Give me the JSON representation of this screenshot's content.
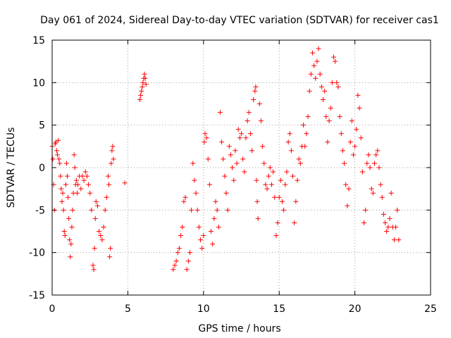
{
  "chart_data": {
    "type": "scatter",
    "title": "Day 061 of 2024, Sidereal Day-to-day VTEC variation (SDTVAR) for receiver cas1",
    "xlabel": "GPS time / hours",
    "ylabel": "SDTVAR / TECUs",
    "xlim": [
      0,
      25
    ],
    "ylim": [
      -15,
      15
    ],
    "xticks": [
      0,
      5,
      10,
      15,
      20,
      25
    ],
    "yticks": [
      -15,
      -10,
      -5,
      0,
      5,
      10,
      15
    ],
    "xtick_labels": [
      "0",
      "5",
      "10",
      "15",
      "20",
      "25"
    ],
    "ytick_labels": [
      "-15",
      "-10",
      "-5",
      "0",
      "5",
      "10",
      "15"
    ],
    "grid": true,
    "marker": "+",
    "color": "#ff0000",
    "series": [
      {
        "name": "SDTVAR",
        "x": [
          0.0,
          0.05,
          0.1,
          0.15,
          0.2,
          0.25,
          0.3,
          0.35,
          0.4,
          0.45,
          0.5,
          0.55,
          0.6,
          0.65,
          0.7,
          0.75,
          0.8,
          0.85,
          0.9,
          0.95,
          1.0,
          1.05,
          1.1,
          1.15,
          1.2,
          1.25,
          1.3,
          1.35,
          1.4,
          1.45,
          1.5,
          1.55,
          1.6,
          1.65,
          1.7,
          1.8,
          1.9,
          2.0,
          2.1,
          2.2,
          2.3,
          2.4,
          2.5,
          2.6,
          2.7,
          2.75,
          2.8,
          2.85,
          2.9,
          3.0,
          3.1,
          3.2,
          3.3,
          3.4,
          3.5,
          3.6,
          3.7,
          3.75,
          3.8,
          3.85,
          3.9,
          3.95,
          4.0,
          4.05,
          4.8,
          5.8,
          5.85,
          5.9,
          5.95,
          6.0,
          6.05,
          6.1,
          6.15,
          6.2,
          8.0,
          8.1,
          8.2,
          8.3,
          8.4,
          8.5,
          8.6,
          8.7,
          8.8,
          8.9,
          9.0,
          9.1,
          9.2,
          9.3,
          9.4,
          9.5,
          9.6,
          9.7,
          9.8,
          9.9,
          10.0,
          10.05,
          10.1,
          10.2,
          10.3,
          10.4,
          10.5,
          10.6,
          10.7,
          10.8,
          10.9,
          11.0,
          11.1,
          11.2,
          11.3,
          11.4,
          11.5,
          11.6,
          11.7,
          11.8,
          11.9,
          12.0,
          12.1,
          12.2,
          12.3,
          12.4,
          12.5,
          12.6,
          12.7,
          12.8,
          12.9,
          13.0,
          13.1,
          13.2,
          13.3,
          13.4,
          13.45,
          13.5,
          13.55,
          13.6,
          13.7,
          13.8,
          13.9,
          14.0,
          14.1,
          14.2,
          14.3,
          14.4,
          14.5,
          14.6,
          14.7,
          14.8,
          14.9,
          15.0,
          15.1,
          15.2,
          15.3,
          15.4,
          15.5,
          15.6,
          15.7,
          15.8,
          15.9,
          16.0,
          16.1,
          16.2,
          16.3,
          16.4,
          16.5,
          16.6,
          16.7,
          16.8,
          16.9,
          17.0,
          17.1,
          17.2,
          17.3,
          17.4,
          17.5,
          17.6,
          17.7,
          17.8,
          17.9,
          18.0,
          18.1,
          18.2,
          18.3,
          18.4,
          18.5,
          18.6,
          18.7,
          18.8,
          18.9,
          19.0,
          19.1,
          19.2,
          19.3,
          19.4,
          19.5,
          19.6,
          19.7,
          19.8,
          19.9,
          20.0,
          20.1,
          20.2,
          20.3,
          20.4,
          20.5,
          20.6,
          20.7,
          20.8,
          20.9,
          21.0,
          21.1,
          21.2,
          21.3,
          21.4,
          21.5,
          21.6,
          21.7,
          21.8,
          21.9,
          22.0,
          22.1,
          22.2,
          22.3,
          22.4,
          22.5,
          22.6,
          22.7,
          22.8,
          22.9
        ],
        "y": [
          2.5,
          1.0,
          -2.0,
          -5.0,
          2.8,
          3.0,
          2.0,
          1.5,
          3.2,
          1.0,
          0.5,
          -1.0,
          -2.5,
          -4.0,
          -3.0,
          -5.0,
          -7.5,
          -8.0,
          -2.0,
          0.5,
          -1.0,
          -3.5,
          -6.0,
          -8.5,
          -10.5,
          -9.0,
          -7.0,
          -5.0,
          -3.0,
          1.5,
          0.0,
          -2.0,
          -1.5,
          -3.0,
          -2.0,
          -1.0,
          -2.5,
          -1.0,
          -1.5,
          -0.5,
          -1.0,
          -2.0,
          -3.0,
          -5.0,
          -11.5,
          -12.0,
          -9.5,
          -6.0,
          -4.0,
          -4.5,
          -7.5,
          -8.0,
          -8.5,
          -7.0,
          -5.0,
          -3.5,
          -1.0,
          -2.0,
          -10.5,
          -9.5,
          0.5,
          2.0,
          2.5,
          1.0,
          -1.8,
          8.0,
          8.5,
          9.0,
          9.5,
          10.0,
          10.5,
          11.0,
          10.5,
          9.8,
          -12.0,
          -11.5,
          -11.0,
          -10.0,
          -9.5,
          -8.0,
          -7.0,
          -4.0,
          -3.5,
          -12.0,
          -11.0,
          -10.0,
          -5.0,
          0.5,
          -1.5,
          -3.0,
          -5.0,
          -7.0,
          -8.5,
          -9.5,
          -8.0,
          3.0,
          4.0,
          3.5,
          1.0,
          -2.0,
          -7.5,
          -9.0,
          -6.0,
          -4.0,
          -5.0,
          -7.0,
          6.5,
          3.0,
          1.0,
          -1.0,
          -3.0,
          -5.0,
          2.5,
          1.5,
          0.0,
          -1.5,
          2.0,
          0.5,
          4.5,
          3.5,
          4.0,
          1.0,
          -0.5,
          3.5,
          5.5,
          6.5,
          4.0,
          2.0,
          8.0,
          9.0,
          9.5,
          -1.5,
          -4.0,
          -6.0,
          7.5,
          5.5,
          2.5,
          0.5,
          -2.0,
          -2.5,
          -1.0,
          0.0,
          -2.0,
          -0.5,
          -3.5,
          -8.0,
          -6.5,
          -3.5,
          -1.5,
          -4.0,
          -5.0,
          -2.0,
          -0.5,
          3.0,
          4.0,
          2.0,
          -1.0,
          -6.5,
          -4.0,
          -1.5,
          1.0,
          0.5,
          2.5,
          5.0,
          2.5,
          4.0,
          6.0,
          9.0,
          11.0,
          13.5,
          12.0,
          10.5,
          12.5,
          14.0,
          11.0,
          9.5,
          8.0,
          9.0,
          6.0,
          3.0,
          5.5,
          7.0,
          10.0,
          13.0,
          12.5,
          10.0,
          9.5,
          6.0,
          4.0,
          2.0,
          0.5,
          -2.0,
          -4.5,
          -2.5,
          3.0,
          5.5,
          1.5,
          2.5,
          4.5,
          8.5,
          7.0,
          3.5,
          -0.5,
          -6.5,
          -5.0,
          0.5,
          1.5,
          0.0,
          -2.5,
          -3.0,
          0.5,
          1.5,
          2.0,
          0.0,
          -2.0,
          -3.5,
          -5.5,
          -6.5,
          -7.5,
          -7.0,
          -6.0,
          -3.0,
          -7.0,
          -8.5,
          -7.0,
          -5.0,
          -8.5
        ]
      }
    ]
  }
}
